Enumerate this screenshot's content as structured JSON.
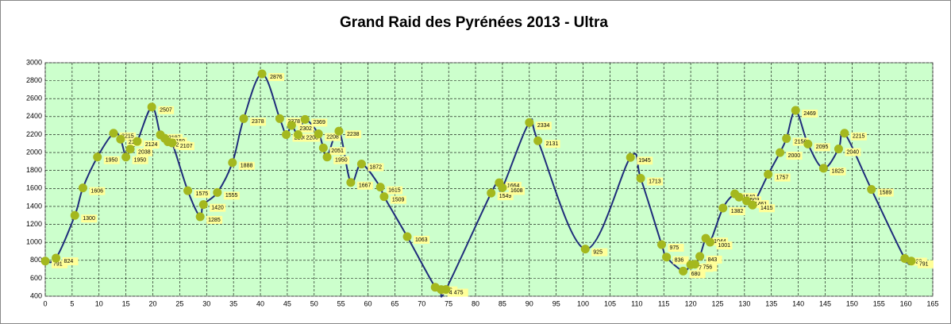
{
  "chart_data": {
    "type": "line",
    "title": "Grand Raid des Pyrénées 2013 - Ultra",
    "x": [
      0,
      2,
      5.5,
      7,
      9.7,
      12.7,
      14,
      15,
      15.8,
      17.1,
      19.8,
      21.4,
      22.2,
      22.8,
      23.6,
      26.5,
      28.8,
      29.4,
      32,
      34.8,
      36.9,
      40.3,
      43.6,
      44.8,
      45.8,
      47,
      48.3,
      50.8,
      51.7,
      52.4,
      54.6,
      56.8,
      58.8,
      62.3,
      63,
      67.3,
      72.5,
      73.6,
      74.5,
      82.9,
      84.4,
      85,
      90,
      91.6,
      100.4,
      108.8,
      110.7,
      114.6,
      115.5,
      118.6,
      120,
      120.8,
      121.7,
      122.8,
      123.6,
      126,
      128.2,
      129,
      130.4,
      131.5,
      134.4,
      136.6,
      137.8,
      139.5,
      141.8,
      144.7,
      147.5,
      148.6,
      153.6,
      159.8,
      161
    ],
    "series": [
      {
        "color": "#1f2d7a",
        "marker_color": "#a4b81e",
        "values": [
          791,
          824,
          1300,
          1606,
          1950,
          2215,
          2149,
          1950,
          2038,
          2124,
          2507,
          2197,
          2159,
          2120,
          2107,
          1575,
          1285,
          1420,
          1555,
          1888,
          2378,
          2876,
          2378,
          2200,
          2302,
          2200,
          2369,
          2208,
          2051,
          1950,
          2238,
          1667,
          1872,
          1615,
          1509,
          1063,
          500,
          474,
          475,
          1549,
          1664,
          1608,
          2334,
          2131,
          925,
          1945,
          1713,
          975,
          836,
          680,
          750,
          756,
          843,
          1044,
          1001,
          1382,
          1540,
          1503,
          1461,
          1415,
          1757,
          2000,
          2156,
          2469,
          2095,
          1825,
          2040,
          2215,
          1589,
          820,
          791
        ]
      }
    ],
    "xlim": [
      0,
      165
    ],
    "xticks": [
      0,
      5,
      10,
      15,
      20,
      25,
      30,
      35,
      40,
      45,
      50,
      55,
      60,
      65,
      70,
      75,
      80,
      85,
      90,
      95,
      100,
      105,
      110,
      115,
      120,
      125,
      130,
      135,
      140,
      145,
      150,
      155,
      160,
      165
    ],
    "ylim": [
      400,
      3000
    ],
    "yticks": [
      400,
      600,
      800,
      1000,
      1200,
      1400,
      1600,
      1800,
      2000,
      2200,
      2400,
      2600,
      2800,
      3000
    ],
    "grid": true
  }
}
